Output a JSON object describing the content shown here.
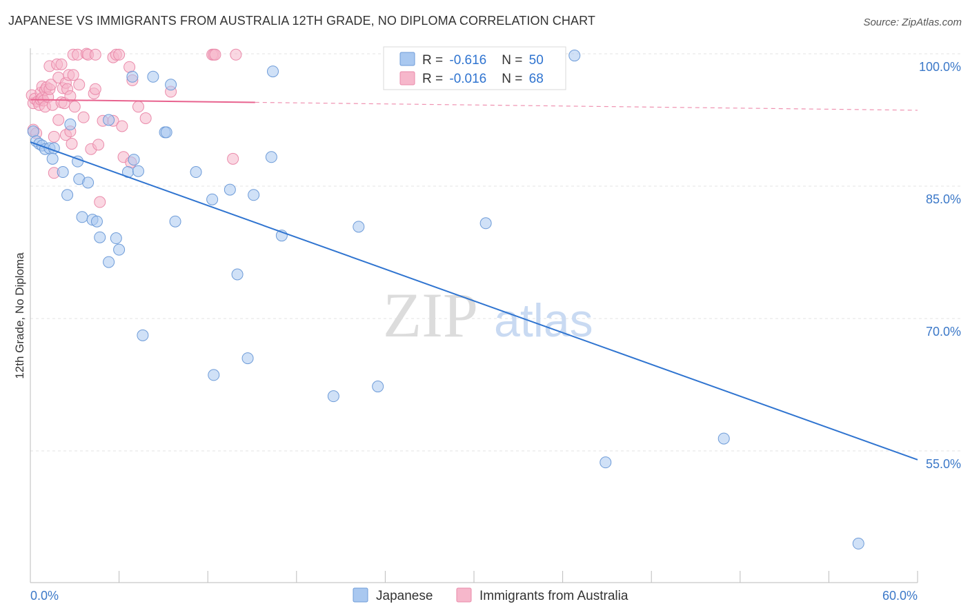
{
  "title": "JAPANESE VS IMMIGRANTS FROM AUSTRALIA 12TH GRADE, NO DIPLOMA CORRELATION CHART",
  "source": "Source: ZipAtlas.com",
  "watermark": {
    "zip": "ZIP",
    "atlas": "atlas"
  },
  "colors": {
    "japanese_fill": "#a9c8f0",
    "japanese_stroke": "#6d9bd8",
    "japanese_line": "#2f74d0",
    "australia_fill": "#f6b7cb",
    "australia_stroke": "#ea8aaa",
    "australia_line": "#e8628e",
    "tick_label": "#3b78c8",
    "grid": "#e3e3e3"
  },
  "legend": {
    "rows": [
      {
        "r_label": "R = ",
        "r_value": "-0.616",
        "n_label": "N = ",
        "n_value": "50"
      },
      {
        "r_label": "R = ",
        "r_value": "-0.016",
        "n_label": "N = ",
        "n_value": "68"
      }
    ]
  },
  "chart_data": {
    "type": "scatter",
    "title": "JAPANESE VS IMMIGRANTS FROM AUSTRALIA 12TH GRADE, NO DIPLOMA CORRELATION CHART",
    "xlabel": "",
    "ylabel": "12th Grade, No Diploma",
    "xlim": [
      0,
      60
    ],
    "ylim": [
      42,
      102
    ],
    "x_tick_labels": [
      {
        "value": 0,
        "label": "0.0%"
      },
      {
        "value": 60,
        "label": "60.0%"
      }
    ],
    "y_tick_labels": [
      {
        "value": 100,
        "label": "100.0%"
      },
      {
        "value": 85,
        "label": "85.0%"
      },
      {
        "value": 70,
        "label": "70.0%"
      },
      {
        "value": 55,
        "label": "55.0%"
      }
    ],
    "grid": true,
    "legend_position": "top-center",
    "series": [
      {
        "name": "Japanese",
        "r": -0.616,
        "n": 50,
        "trend": {
          "x": [
            0,
            60
          ],
          "y": [
            90.0,
            54.0
          ]
        },
        "points": [
          [
            0.2,
            91.2
          ],
          [
            0.4,
            90.1
          ],
          [
            0.6,
            89.8
          ],
          [
            0.8,
            89.6
          ],
          [
            1.0,
            89.2
          ],
          [
            1.3,
            89.3
          ],
          [
            1.6,
            89.3
          ],
          [
            1.5,
            88.1
          ],
          [
            2.2,
            86.6
          ],
          [
            2.5,
            84.0
          ],
          [
            3.3,
            85.8
          ],
          [
            3.2,
            87.8
          ],
          [
            2.7,
            92.0
          ],
          [
            3.9,
            85.4
          ],
          [
            3.5,
            81.5
          ],
          [
            4.2,
            81.2
          ],
          [
            4.5,
            81.0
          ],
          [
            4.7,
            79.2
          ],
          [
            5.3,
            92.5
          ],
          [
            5.3,
            76.4
          ],
          [
            5.8,
            79.1
          ],
          [
            6.0,
            77.8
          ],
          [
            6.6,
            86.6
          ],
          [
            7.0,
            88.0
          ],
          [
            7.3,
            86.7
          ],
          [
            6.9,
            97.4
          ],
          [
            7.6,
            68.1
          ],
          [
            8.3,
            97.4
          ],
          [
            9.1,
            91.1
          ],
          [
            9.2,
            91.1
          ],
          [
            9.5,
            96.5
          ],
          [
            9.8,
            81.0
          ],
          [
            11.2,
            86.6
          ],
          [
            12.3,
            83.5
          ],
          [
            12.4,
            63.6
          ],
          [
            13.5,
            84.6
          ],
          [
            14.0,
            75.0
          ],
          [
            14.7,
            65.5
          ],
          [
            15.1,
            84.0
          ],
          [
            16.3,
            88.3
          ],
          [
            16.4,
            98.0
          ],
          [
            17.0,
            79.4
          ],
          [
            20.5,
            61.2
          ],
          [
            22.2,
            80.4
          ],
          [
            23.5,
            62.3
          ],
          [
            30.8,
            80.8
          ],
          [
            36.8,
            99.8
          ],
          [
            38.9,
            53.7
          ],
          [
            46.9,
            56.4
          ],
          [
            56.0,
            44.5
          ]
        ]
      },
      {
        "name": "Immigrants from Australia",
        "r": -0.016,
        "n": 68,
        "trend": {
          "x": [
            0,
            60
          ],
          "y": [
            94.8,
            93.6
          ],
          "solid_until_x": 15.2
        },
        "points": [
          [
            0.1,
            95.3
          ],
          [
            0.2,
            94.4
          ],
          [
            0.2,
            91.4
          ],
          [
            0.3,
            94.9
          ],
          [
            0.4,
            91.0
          ],
          [
            0.5,
            94.6
          ],
          [
            0.6,
            94.2
          ],
          [
            0.7,
            94.8
          ],
          [
            0.7,
            95.6
          ],
          [
            0.8,
            95.0
          ],
          [
            0.8,
            96.3
          ],
          [
            0.9,
            94.7
          ],
          [
            1.0,
            95.9
          ],
          [
            1.0,
            94.0
          ],
          [
            1.1,
            96.2
          ],
          [
            1.2,
            95.1
          ],
          [
            1.3,
            98.6
          ],
          [
            1.3,
            96.0
          ],
          [
            1.4,
            96.5
          ],
          [
            1.5,
            94.2
          ],
          [
            1.6,
            90.6
          ],
          [
            1.6,
            86.5
          ],
          [
            1.8,
            98.8
          ],
          [
            1.9,
            97.3
          ],
          [
            1.9,
            92.5
          ],
          [
            2.1,
            98.8
          ],
          [
            2.1,
            94.5
          ],
          [
            2.2,
            96.1
          ],
          [
            2.3,
            94.4
          ],
          [
            2.4,
            96.7
          ],
          [
            2.4,
            90.8
          ],
          [
            2.5,
            96.0
          ],
          [
            2.6,
            97.6
          ],
          [
            2.7,
            95.2
          ],
          [
            2.7,
            91.2
          ],
          [
            2.8,
            89.8
          ],
          [
            2.9,
            97.6
          ],
          [
            2.9,
            99.9
          ],
          [
            3.0,
            94.0
          ],
          [
            3.2,
            99.9
          ],
          [
            3.3,
            96.5
          ],
          [
            3.6,
            92.8
          ],
          [
            3.8,
            100.0
          ],
          [
            3.9,
            99.9
          ],
          [
            4.1,
            89.2
          ],
          [
            4.3,
            95.5
          ],
          [
            4.4,
            96.0
          ],
          [
            4.4,
            99.9
          ],
          [
            4.6,
            89.7
          ],
          [
            4.7,
            83.2
          ],
          [
            4.9,
            92.4
          ],
          [
            5.6,
            92.4
          ],
          [
            5.6,
            99.6
          ],
          [
            5.8,
            99.9
          ],
          [
            6.0,
            99.9
          ],
          [
            6.2,
            91.8
          ],
          [
            6.3,
            88.3
          ],
          [
            6.7,
            98.5
          ],
          [
            6.8,
            87.7
          ],
          [
            6.9,
            97.0
          ],
          [
            7.3,
            94.0
          ],
          [
            7.8,
            92.7
          ],
          [
            9.5,
            95.7
          ],
          [
            12.3,
            99.9
          ],
          [
            12.4,
            99.9
          ],
          [
            12.5,
            99.9
          ],
          [
            13.7,
            88.1
          ],
          [
            13.9,
            99.9
          ]
        ]
      }
    ]
  }
}
